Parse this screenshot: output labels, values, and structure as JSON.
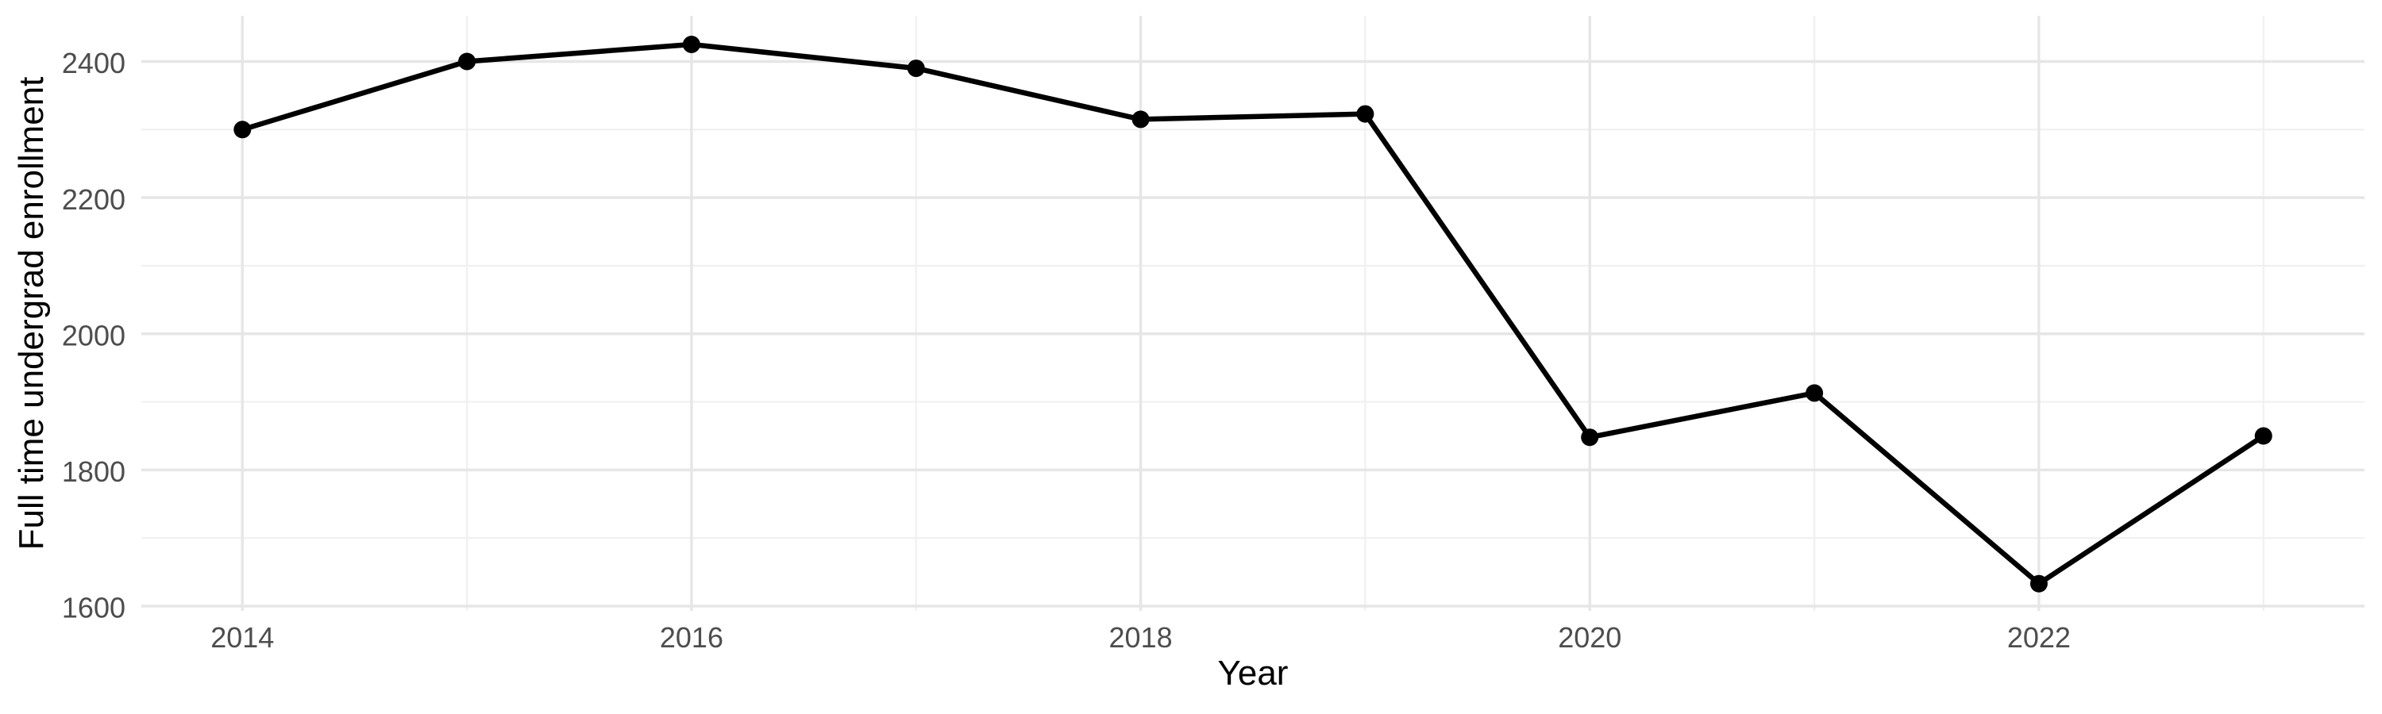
{
  "chart_data": {
    "type": "line",
    "title": "",
    "xlabel": "Year",
    "ylabel": "Full time undergrad enrollment",
    "x": [
      2014,
      2015,
      2016,
      2017,
      2018,
      2019,
      2020,
      2021,
      2022,
      2023
    ],
    "series": [
      {
        "name": "Full time undergrad enrollment",
        "values": [
          2300,
          2400,
          2425,
          2390,
          2315,
          2323,
          1848,
          1913,
          1633,
          1850
        ]
      }
    ],
    "xlim": [
      2013.55,
      2023.45
    ],
    "ylim": [
      1593,
      2467
    ],
    "x_major_ticks": [
      2014,
      2016,
      2018,
      2020,
      2022
    ],
    "x_minor_ticks": [
      2015,
      2017,
      2019,
      2021,
      2023
    ],
    "y_major_ticks": [
      1600,
      1800,
      2000,
      2200,
      2400
    ],
    "y_minor_ticks": [
      1700,
      1900,
      2100,
      2300
    ],
    "x_tick_labels": [
      "2014",
      "2016",
      "2018",
      "2020",
      "2022"
    ],
    "y_tick_labels": [
      "1600",
      "1800",
      "2000",
      "2200",
      "2400"
    ],
    "grid": true,
    "legend": "none",
    "colors": {
      "line": "#000000",
      "point": "#000000",
      "grid_major": "#e6e6e6",
      "grid_minor": "#f0f0f0",
      "tick_label": "#4d4d4d",
      "axis_title": "#000000",
      "background": "#ffffff"
    }
  }
}
